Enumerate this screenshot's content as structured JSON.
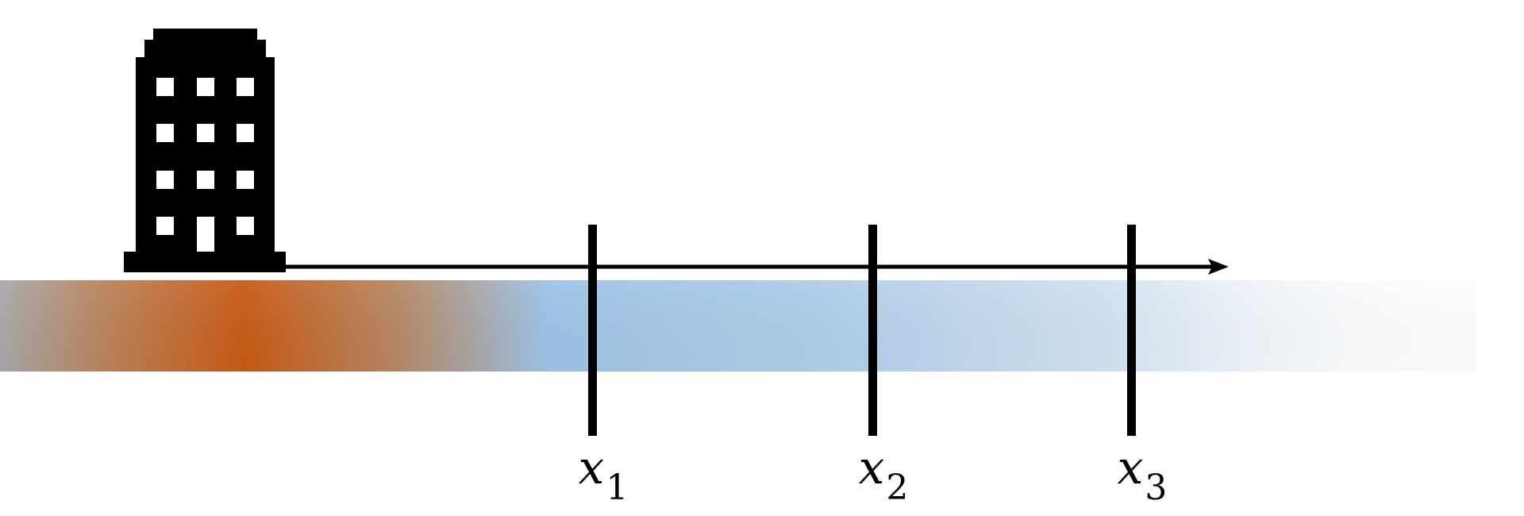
{
  "colors": {
    "hot": "#c85a14",
    "cool": "#9dc3e6",
    "background": "#ffffff",
    "ink": "#000000"
  },
  "icons": {
    "building": "office-building-icon",
    "arrow": "arrow-right-icon"
  },
  "markers": [
    {
      "var": "x",
      "sub": "1"
    },
    {
      "var": "x",
      "sub": "2"
    },
    {
      "var": "x",
      "sub": "3"
    }
  ]
}
